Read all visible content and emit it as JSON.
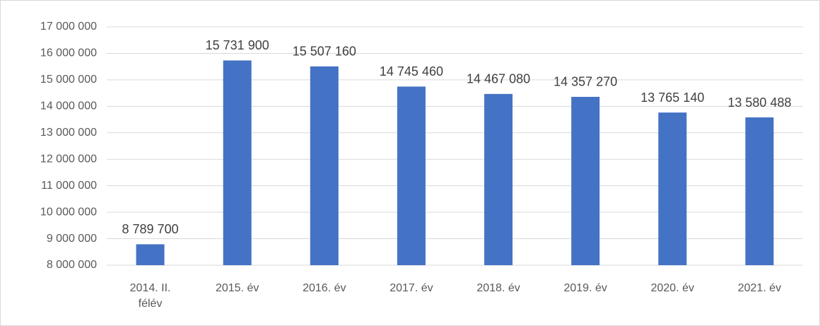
{
  "chart_data": {
    "type": "bar",
    "categories": [
      "2014. II. félév",
      "2015. év",
      "2016. év",
      "2017. év",
      "2018. év",
      "2019. év",
      "2020. év",
      "2021. év"
    ],
    "values": [
      8789700,
      15731900,
      15507160,
      14745460,
      14467080,
      14357270,
      13765140,
      13580488
    ],
    "value_labels": [
      "8 789 700",
      "15 731 900",
      "15 507 160",
      "14 745 460",
      "14 467 080",
      "14 357 270",
      "13 765 140",
      "13 580 488"
    ],
    "color": "#4472c4",
    "ylim": [
      8000000,
      17000000
    ],
    "yticks": [
      {
        "value": 8000000,
        "label": "8 000 000"
      },
      {
        "value": 9000000,
        "label": "9 000 000"
      },
      {
        "value": 10000000,
        "label": "10 000 000"
      },
      {
        "value": 11000000,
        "label": "11 000 000"
      },
      {
        "value": 12000000,
        "label": "12 000 000"
      },
      {
        "value": 13000000,
        "label": "13 000 000"
      },
      {
        "value": 14000000,
        "label": "14 000 000"
      },
      {
        "value": 15000000,
        "label": "15 000 000"
      },
      {
        "value": 16000000,
        "label": "16 000 000"
      },
      {
        "value": 17000000,
        "label": "17 000 000"
      }
    ],
    "grid": true
  }
}
